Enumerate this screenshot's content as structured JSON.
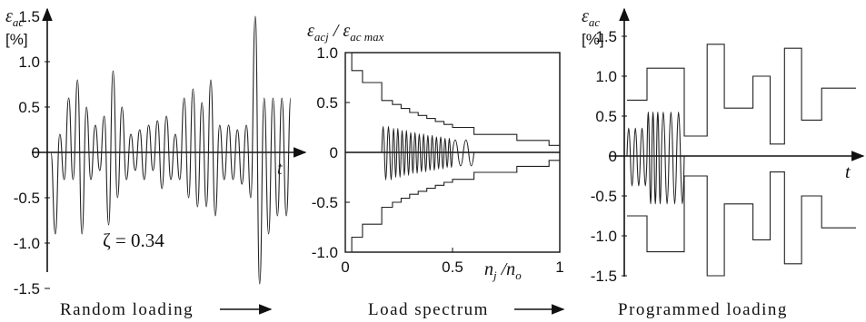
{
  "chart_data": [
    {
      "type": "line",
      "ylabel_symbol": "ε",
      "ylabel_subscript": "ac",
      "yunit": "[%]",
      "xlabel": "t",
      "yticks": [
        "1.5",
        "1.0",
        "0.5",
        "0",
        "-0.5",
        "-1.0",
        "-1.5"
      ],
      "ylim": [
        -1.5,
        1.5
      ],
      "annotation": "ζ = 0.34",
      "caption": "Random loading",
      "series": [
        {
          "peaks": [
            -0.9,
            0.2,
            -0.3,
            0.6,
            -0.3,
            0.8,
            -0.9,
            0.5,
            -0.3,
            0.3,
            -0.2,
            0.4,
            -0.8,
            0.9,
            -0.5,
            0.5,
            -0.3,
            0.2,
            -0.2,
            0.25,
            -0.3,
            0.3,
            -0.2,
            0.35,
            -0.4,
            0.4,
            -0.3,
            0.2,
            -0.3,
            0.6,
            -0.5,
            0.7,
            -0.6,
            0.55,
            -0.6,
            0.8,
            -0.7,
            0.3,
            -0.3,
            0.3,
            -0.3,
            0.25,
            -0.35,
            0.3,
            -0.5,
            1.5,
            -1.45,
            0.6,
            -0.9,
            0.6,
            -0.7,
            0.6,
            -0.7,
            0.6
          ]
        }
      ]
    },
    {
      "type": "line",
      "ylabel_text": "ε_acj / ε_ac max",
      "ylabel_p1": "ε",
      "ylabel_s1": "acj",
      "ylabel_p2": " / ε",
      "ylabel_s2": "ac max",
      "xlabel_p1": "n",
      "xlabel_s1": "j",
      "xlabel_p2": " /n",
      "xlabel_s2": "o",
      "yticks": [
        "1.0",
        "0.5",
        "0",
        "-0.5",
        "-1.0"
      ],
      "xticks": [
        "0",
        "0.5",
        "1"
      ],
      "xlim": [
        0,
        1
      ],
      "ylim": [
        -1,
        1
      ],
      "caption": "Load spectrum",
      "series": [
        {
          "name": "upper envelope",
          "x": [
            0,
            0.03,
            0.08,
            0.17,
            0.22,
            0.26,
            0.3,
            0.34,
            0.38,
            0.42,
            0.46,
            0.5,
            0.6,
            0.8,
            0.95,
            1.0
          ],
          "y": [
            1.0,
            0.82,
            0.7,
            0.52,
            0.48,
            0.44,
            0.4,
            0.37,
            0.34,
            0.31,
            0.28,
            0.25,
            0.18,
            0.12,
            0.07,
            0.04
          ]
        },
        {
          "name": "lower envelope",
          "x": [
            0,
            0.03,
            0.08,
            0.17,
            0.22,
            0.26,
            0.3,
            0.34,
            0.38,
            0.42,
            0.46,
            0.5,
            0.6,
            0.8,
            0.95,
            1.0
          ],
          "y": [
            -1.0,
            -0.85,
            -0.72,
            -0.55,
            -0.5,
            -0.46,
            -0.42,
            -0.39,
            -0.36,
            -0.33,
            -0.3,
            -0.27,
            -0.2,
            -0.14,
            -0.08,
            -0.05
          ]
        }
      ]
    },
    {
      "type": "line",
      "ylabel_symbol": "ε",
      "ylabel_subscript": "ac",
      "yunit": "[%]",
      "xlabel": "t",
      "yticks": [
        "1.5",
        "1.0",
        "0.5",
        "0",
        "-0.5",
        "-1.0",
        "-1.5"
      ],
      "ylim": [
        -1.5,
        1.5
      ],
      "caption": "Programmed loading",
      "series": [
        {
          "name": "upper blocks",
          "levels": [
            0.7,
            1.1,
            1.1,
            0.25,
            1.4,
            0.6,
            1.0,
            0.15,
            1.35,
            0.45,
            0.85
          ]
        },
        {
          "name": "lower blocks",
          "levels": [
            -0.75,
            -1.2,
            -1.2,
            -0.25,
            -1.5,
            -0.6,
            -1.05,
            -0.2,
            -1.35,
            -0.5,
            -0.9
          ]
        }
      ]
    }
  ]
}
